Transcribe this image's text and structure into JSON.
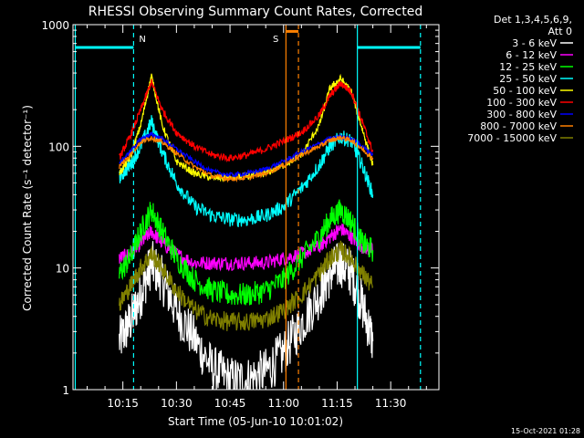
{
  "chart_data": {
    "type": "line",
    "title": "RHESSI Observing Summary Count Rates, Corrected",
    "ylabel": "Corrected Count Rate (s⁻¹ detector⁻¹)",
    "xlabel": "Start Time (05-Jun-10 10:01:02)",
    "y_scale": "log",
    "ylim": [
      1,
      1000
    ],
    "xlim": [
      "10:01:02",
      "11:43:30"
    ],
    "y_ticks": [
      "1",
      "10",
      "100",
      "1000"
    ],
    "x_ticks": [
      "10:15",
      "10:30",
      "10:45",
      "11:00",
      "11:15",
      "11:30"
    ],
    "legend_position": "right",
    "legend_header": [
      "Det 1,3,4,5,6,9,",
      "Att 0"
    ],
    "timestamp": "15-Oct-2021 01:28",
    "markers": [
      {
        "label": "N",
        "time": "10:18:00",
        "color": "#00ffff",
        "style": "dashed"
      },
      {
        "label": "S",
        "time": "11:00:40",
        "color": "#ff8000",
        "style": "solid"
      }
    ],
    "vertical_lines": [
      {
        "time": "10:01:40",
        "color": "#00ffff",
        "style": "solid"
      },
      {
        "time": "10:18:00",
        "color": "#00ffff",
        "style": "dashed"
      },
      {
        "time": "11:00:40",
        "color": "#ff8000",
        "style": "solid"
      },
      {
        "time": "11:04:10",
        "color": "#ff8000",
        "style": "dashed"
      },
      {
        "time": "11:20:40",
        "color": "#00ffff",
        "style": "solid"
      },
      {
        "time": "11:38:20",
        "color": "#00ffff",
        "style": "dashed"
      }
    ],
    "bars": [
      {
        "from": "10:01:40",
        "to": "10:18:00",
        "y": 650,
        "color": "#00ffff"
      },
      {
        "from": "11:00:40",
        "to": "11:04:10",
        "y": 880,
        "color": "#ff8000"
      },
      {
        "from": "11:20:40",
        "to": "11:38:20",
        "y": 650,
        "color": "#00ffff"
      }
    ],
    "x": [
      "10:14",
      "10:17",
      "10:20",
      "10:23",
      "10:26",
      "10:30",
      "10:35",
      "10:40",
      "10:45",
      "10:50",
      "10:55",
      "11:00",
      "11:05",
      "11:10",
      "11:13",
      "11:16",
      "11:19",
      "11:22",
      "11:25"
    ],
    "series": [
      {
        "name": "3 - 6 keV",
        "color": "#ffffff",
        "noise": 0.2,
        "values": [
          2.5,
          3.6,
          6,
          11,
          8,
          4.5,
          2.6,
          1.5,
          1.2,
          1.2,
          1.4,
          2,
          3.5,
          6,
          9,
          11,
          9,
          5,
          2.5
        ]
      },
      {
        "name": "6 - 12 keV",
        "color": "#ff00ff",
        "noise": 0.06,
        "values": [
          12,
          13,
          16,
          20,
          16,
          13,
          11,
          11,
          11,
          11,
          11,
          12,
          13,
          15,
          18,
          21,
          18,
          15,
          14
        ]
      },
      {
        "name": "12 - 25 keV",
        "color": "#00ff00",
        "noise": 0.1,
        "values": [
          9,
          12,
          20,
          30,
          20,
          12,
          8,
          6.5,
          6,
          6,
          6.5,
          8,
          12,
          18,
          25,
          30,
          24,
          16,
          14
        ]
      },
      {
        "name": "25 - 50 keV",
        "color": "#00ffff",
        "noise": 0.06,
        "values": [
          55,
          70,
          100,
          160,
          90,
          50,
          32,
          27,
          25,
          25,
          27,
          32,
          45,
          70,
          100,
          120,
          110,
          70,
          40
        ]
      },
      {
        "name": "50 - 100 keV",
        "color": "#ffff00",
        "noise": 0.03,
        "values": [
          60,
          80,
          150,
          380,
          150,
          75,
          60,
          55,
          55,
          57,
          60,
          70,
          85,
          150,
          300,
          360,
          280,
          140,
          70
        ]
      },
      {
        "name": "100 - 300 keV",
        "color": "#ff0000",
        "noise": 0.03,
        "values": [
          80,
          120,
          200,
          340,
          200,
          130,
          100,
          85,
          80,
          85,
          95,
          110,
          130,
          180,
          260,
          330,
          280,
          160,
          90
        ]
      },
      {
        "name": "300 - 800 keV",
        "color": "#0000ff",
        "noise": 0.02,
        "values": [
          72,
          90,
          115,
          125,
          115,
          95,
          75,
          62,
          58,
          60,
          65,
          75,
          90,
          105,
          115,
          120,
          115,
          100,
          85
        ]
      },
      {
        "name": "800 - 7000 keV",
        "color": "#ff8000",
        "noise": 0.02,
        "values": [
          68,
          85,
          108,
          118,
          108,
          88,
          68,
          57,
          54,
          55,
          60,
          70,
          85,
          100,
          112,
          118,
          112,
          95,
          80
        ]
      },
      {
        "name": "7000 - 15000 keV",
        "color": "#808000",
        "noise": 0.08,
        "values": [
          5,
          7,
          10,
          13,
          10,
          6.5,
          4.5,
          3.8,
          3.6,
          3.6,
          3.8,
          4.5,
          6,
          9,
          12,
          14,
          12,
          9,
          7
        ]
      }
    ]
  }
}
